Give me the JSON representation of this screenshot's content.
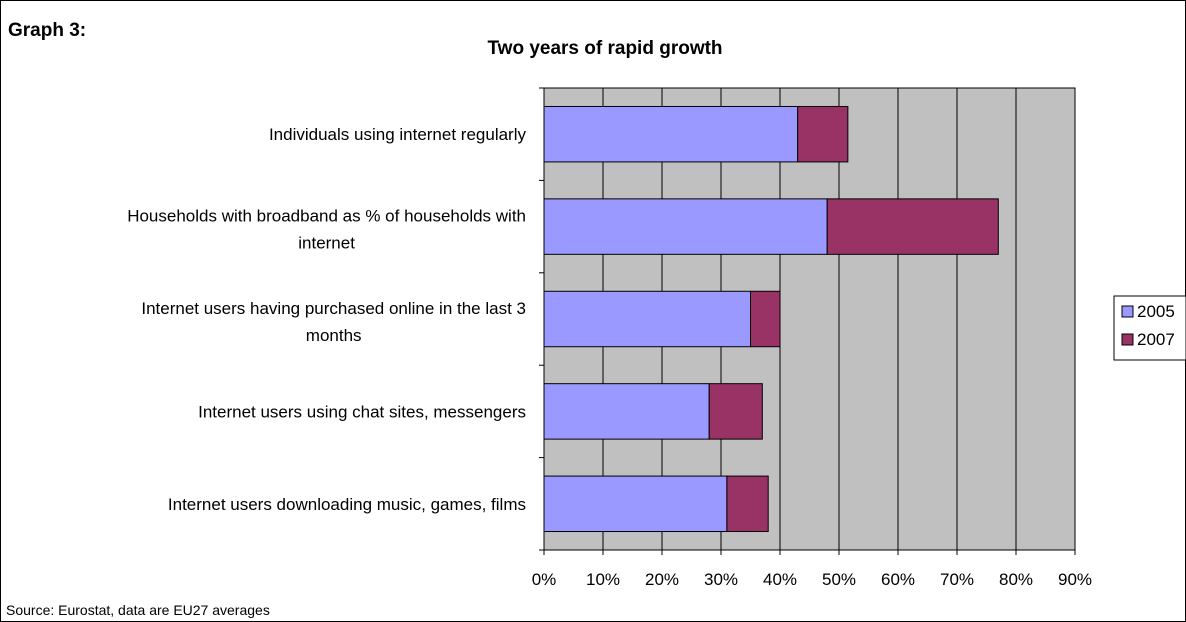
{
  "header": {
    "graph_label": "Graph 3:",
    "footer": "Source: Eurostat, data are EU27 averages"
  },
  "colors": {
    "plot_bg": "#c0c0c0",
    "series_2005": "#9999ff",
    "series_2007": "#993366",
    "grid": "#000000"
  },
  "chart_data": {
    "type": "bar",
    "orientation": "horizontal",
    "stacked": true,
    "title": "Two years of rapid growth",
    "categories": [
      [
        "Individuals using internet regularly"
      ],
      [
        "Households with broadband as % of households with",
        "internet"
      ],
      [
        "Internet users having purchased online in the last 3",
        "months"
      ],
      [
        "Internet users using chat sites, messengers"
      ],
      [
        "Internet users downloading music, games, films"
      ]
    ],
    "series": [
      {
        "name": "2005",
        "values": [
          43,
          48,
          35,
          28,
          31
        ]
      },
      {
        "name": "2007",
        "values": [
          8.5,
          29,
          5,
          9,
          7
        ]
      }
    ],
    "xlim": [
      0,
      90
    ],
    "xticks": [
      "0%",
      "10%",
      "20%",
      "30%",
      "40%",
      "50%",
      "60%",
      "70%",
      "80%",
      "90%"
    ],
    "grid": "vertical",
    "legend": "right"
  }
}
